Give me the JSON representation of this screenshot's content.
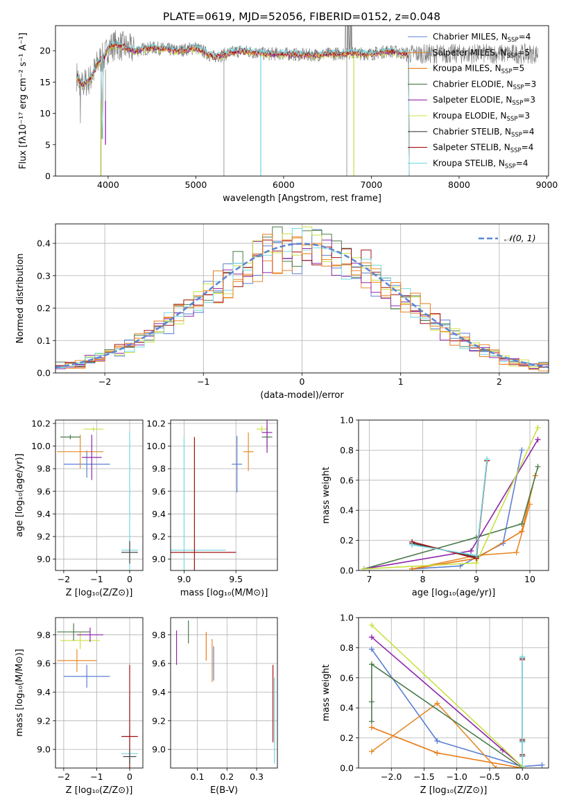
{
  "title": "PLATE=0619, MJD=52056, FIBERID=0152, z=0.048",
  "colors": {
    "Chabrier MILES": "#5b7fd4",
    "Salpeter MILES": "#e58a2a",
    "Kroupa MILES": "#e87a14",
    "Chabrier ELODIE": "#4a7a4a",
    "Salpeter ELODIE": "#8e24aa",
    "Kroupa ELODIE": "#c8e040",
    "Chabrier STELIB": "#444444",
    "Salpeter STELIB": "#a01010",
    "Kroupa STELIB": "#74d8e0",
    "data": "#808080",
    "normal": "#5b86d4"
  },
  "chart_data": [
    {
      "id": "spectrum",
      "type": "line",
      "title": "PLATE=0619, MJD=52056, FIBERID=0152, z=0.048",
      "xlabel": "wavelength [Angstrom, rest frame]",
      "ylabel": "Flux [fλ10⁻¹⁷ erg cm⁻² s⁻¹ A⁻¹]",
      "xlim": [
        3400,
        9020
      ],
      "ylim": [
        0,
        24
      ],
      "xticks": [
        4000,
        5000,
        6000,
        7000,
        8000,
        9000
      ],
      "yticks": [
        0,
        5,
        10,
        15,
        20
      ],
      "legend_position": "right",
      "legend": [
        {
          "name": "Chabrier MILES",
          "nssp": "4"
        },
        {
          "name": "Salpeter MILES",
          "nssp": "5"
        },
        {
          "name": "Kroupa MILES",
          "nssp": "5"
        },
        {
          "name": "Chabrier ELODIE",
          "nssp": "3"
        },
        {
          "name": "Salpeter ELODIE",
          "nssp": "3"
        },
        {
          "name": "Kroupa ELODIE",
          "nssp": "3"
        },
        {
          "name": "Chabrier STELIB",
          "nssp": "4"
        },
        {
          "name": "Salpeter STELIB",
          "nssp": "4"
        },
        {
          "name": "Kroupa STELIB",
          "nssp": "4"
        }
      ],
      "continuum": [
        [
          3640,
          16
        ],
        [
          3700,
          14.5
        ],
        [
          3800,
          15.5
        ],
        [
          3900,
          18.5
        ],
        [
          3960,
          19
        ],
        [
          4000,
          20.5
        ],
        [
          4100,
          21
        ],
        [
          4300,
          20
        ],
        [
          4500,
          20.5
        ],
        [
          4800,
          20
        ],
        [
          5000,
          20.5
        ],
        [
          5200,
          19
        ],
        [
          5500,
          20
        ],
        [
          5800,
          19.5
        ],
        [
          6000,
          19.5
        ],
        [
          6300,
          19.3
        ],
        [
          6700,
          19.6
        ],
        [
          7000,
          19.5
        ],
        [
          7200,
          20
        ],
        [
          7400,
          19.5
        ],
        [
          7430,
          19
        ]
      ],
      "fit_cutoff": {
        "wavelength": 7430,
        "value": 0
      },
      "drops": [
        {
          "wavelength": 3920,
          "value": 0
        },
        {
          "wavelength": 3970,
          "value": 5
        },
        {
          "wavelength": 5740,
          "value": 0
        },
        {
          "wavelength": 6800,
          "value": 0
        },
        {
          "wavelength": 5320,
          "value": 0
        },
        {
          "wavelength": 6720,
          "value": 0
        }
      ]
    },
    {
      "id": "residuals",
      "type": "line",
      "xlabel": "(data-model)/error",
      "ylabel": "Normed distribution",
      "xlim": [
        -2.5,
        2.5
      ],
      "ylim": [
        0,
        0.46
      ],
      "xticks": [
        -2,
        -1,
        0,
        1,
        2
      ],
      "yticks": [
        0,
        0.1,
        0.2,
        0.3,
        0.4
      ],
      "grid": true,
      "legend_position": "top-right",
      "legend": [
        {
          "name": "𝒩(0, 1)"
        }
      ],
      "normal": {
        "mu": 0,
        "sigma": 1
      },
      "bin_width": 0.1
    },
    {
      "id": "age-vs-Z",
      "type": "scatter",
      "xlabel": "Z [log₁₀(Z/Z⊙)]",
      "ylabel": "age  [log₁₀(age/yr)]",
      "xlim": [
        -2.25,
        0.4
      ],
      "ylim": [
        8.9,
        10.23
      ],
      "xticks": [
        -2,
        -1,
        0
      ],
      "yticks": [
        9.0,
        9.2,
        9.4,
        9.6,
        9.8,
        10.0,
        10.2
      ],
      "grid": true,
      "points": [
        {
          "series": "Chabrier MILES",
          "x": -1.3,
          "y": 9.84,
          "xerr": 0.7,
          "yerr": 0.12
        },
        {
          "series": "Salpeter MILES",
          "x": -1.5,
          "y": 9.95,
          "xerr": 0.7,
          "yerr": 0.15
        },
        {
          "series": "Kroupa ELODIE",
          "x": -1.1,
          "y": 10.15,
          "xerr": 0.3,
          "yerr": 0.02
        },
        {
          "series": "Chabrier ELODIE",
          "x": -1.8,
          "y": 10.08,
          "xerr": 0.3,
          "yerr": 0.02
        },
        {
          "series": "Salpeter ELODIE",
          "x": -1.15,
          "y": 9.9,
          "xerr": 0.3,
          "yerr": 0.2
        },
        {
          "series": "Kroupa STELIB",
          "x": 0.0,
          "y": 9.08,
          "xerr": 0.25,
          "yerr": 1.05
        },
        {
          "series": "Chabrier STELIB",
          "x": 0.0,
          "y": 9.06,
          "xerr": 0.25,
          "yerr": 0.1
        }
      ]
    },
    {
      "id": "age-vs-mass",
      "type": "scatter",
      "xlabel": "mass [log₁₀(M/M⊙)]",
      "xlim": [
        8.87,
        9.9
      ],
      "ylim": [
        8.9,
        10.23
      ],
      "xticks": [
        9.0,
        9.5
      ],
      "yticks": [
        9.0,
        9.2,
        9.4,
        9.6,
        9.8,
        10.0,
        10.2
      ],
      "grid": true,
      "points": [
        {
          "series": "Chabrier MILES",
          "x": 9.51,
          "y": 9.84,
          "xerr": 0.05,
          "yerr": 0.25
        },
        {
          "series": "Salpeter MILES",
          "x": 9.62,
          "y": 9.95,
          "xerr": 0.05,
          "yerr": 0.17
        },
        {
          "series": "Kroupa ELODIE",
          "x": 9.75,
          "y": 10.15,
          "xerr": 0.05,
          "yerr": 0.03
        },
        {
          "series": "Chabrier ELODIE",
          "x": 9.8,
          "y": 10.08,
          "xerr": 0.05,
          "yerr": 0.1
        },
        {
          "series": "Salpeter ELODIE",
          "x": 9.8,
          "y": 10.12,
          "xerr": 0.05,
          "yerr": 0.18
        },
        {
          "series": "Kroupa STELIB",
          "x": 9.0,
          "y": 9.08,
          "xerr": 0.4,
          "yerr": 1.0
        },
        {
          "series": "Salpeter STELIB",
          "x": 9.1,
          "y": 9.06,
          "xerr": 0.4,
          "yerr": 1.02
        }
      ]
    },
    {
      "id": "weight-vs-age",
      "type": "line",
      "xlabel": "age  [log₁₀(age/yr)]",
      "ylabel": "mass weight",
      "xlim": [
        6.8,
        10.35
      ],
      "ylim": [
        0,
        1.0
      ],
      "xticks": [
        7,
        8,
        9,
        10
      ],
      "yticks": [
        0.0,
        0.2,
        0.4,
        0.6,
        0.8,
        1.0
      ],
      "grid": true,
      "series": [
        {
          "name": "Chabrier MILES",
          "x": [
            7.8,
            8.7,
            9.5,
            9.85
          ],
          "y": [
            0.01,
            0.03,
            0.18,
            0.8
          ]
        },
        {
          "name": "Salpeter MILES",
          "x": [
            7.8,
            9.0,
            9.75,
            10.0
          ],
          "y": [
            0.01,
            0.1,
            0.12,
            0.44
          ]
        },
        {
          "name": "Kroupa MILES",
          "x": [
            7.8,
            9.0,
            9.85,
            10.1
          ],
          "y": [
            0.01,
            0.08,
            0.26,
            0.63
          ]
        },
        {
          "name": "Chabrier ELODIE",
          "x": [
            6.9,
            9.0,
            9.85,
            10.15
          ],
          "y": [
            0.01,
            0.22,
            0.31,
            0.69
          ]
        },
        {
          "name": "Salpeter ELODIE",
          "x": [
            6.9,
            8.9,
            10.15
          ],
          "y": [
            0.01,
            0.13,
            0.87
          ]
        },
        {
          "name": "Kroupa ELODIE",
          "x": [
            6.9,
            9.0,
            10.15
          ],
          "y": [
            0.01,
            0.05,
            0.95
          ]
        },
        {
          "name": "Chabrier STELIB",
          "x": [
            7.8,
            9.0,
            9.2
          ],
          "y": [
            0.18,
            0.09,
            0.73
          ]
        },
        {
          "name": "Salpeter STELIB",
          "x": [
            7.8,
            9.0,
            9.2
          ],
          "y": [
            0.19,
            0.08,
            0.73
          ]
        },
        {
          "name": "Kroupa STELIB",
          "x": [
            7.8,
            9.0,
            9.2
          ],
          "y": [
            0.17,
            0.1,
            0.74
          ]
        }
      ]
    },
    {
      "id": "mass-vs-Z",
      "type": "scatter",
      "xlabel": "Z [log₁₀(Z/Z⊙)]",
      "ylabel": "mass [log₁₀(M/M⊙)]",
      "xlim": [
        -2.25,
        0.4
      ],
      "ylim": [
        8.87,
        9.92
      ],
      "xticks": [
        -2,
        -1,
        0
      ],
      "yticks": [
        9.0,
        9.2,
        9.4,
        9.6,
        9.8
      ],
      "grid": true,
      "points": [
        {
          "series": "Chabrier MILES",
          "x": -1.3,
          "y": 9.51,
          "xerr": 0.7,
          "yerr": 0.08
        },
        {
          "series": "Salpeter MILES",
          "x": -1.6,
          "y": 9.62,
          "xerr": 0.6,
          "yerr": 0.08
        },
        {
          "series": "Kroupa ELODIE",
          "x": -1.5,
          "y": 9.76,
          "xerr": 0.6,
          "yerr": 0.06
        },
        {
          "series": "Chabrier ELODIE",
          "x": -1.7,
          "y": 9.82,
          "xerr": 0.5,
          "yerr": 0.06
        },
        {
          "series": "Salpeter ELODIE",
          "x": -1.2,
          "y": 9.8,
          "xerr": 0.4,
          "yerr": 0.05
        },
        {
          "series": "Kroupa STELIB",
          "x": 0.0,
          "y": 8.97,
          "xerr": 0.25,
          "yerr": 0.4
        },
        {
          "series": "Salpeter STELIB",
          "x": 0.0,
          "y": 9.09,
          "xerr": 0.25,
          "yerr": 0.5
        },
        {
          "series": "Chabrier STELIB",
          "x": 0.0,
          "y": 8.95,
          "xerr": 0.2,
          "yerr": 0.05
        }
      ]
    },
    {
      "id": "mass-vs-EBV",
      "type": "scatter",
      "xlabel": "E(B-V)",
      "xlim": [
        0.01,
        0.37
      ],
      "ylim": [
        8.87,
        9.92
      ],
      "xticks": [
        0.1,
        0.2,
        0.3
      ],
      "yticks": [
        9.0,
        9.2,
        9.4,
        9.6,
        9.8
      ],
      "grid": true,
      "points": [
        {
          "series": "Salpeter ELODIE",
          "x": 0.03,
          "y": 9.71,
          "yerr": 0.12
        },
        {
          "series": "Chabrier ELODIE",
          "x": 0.07,
          "y": 9.82,
          "yerr": 0.08
        },
        {
          "series": "Kroupa MILES",
          "x": 0.13,
          "y": 9.72,
          "yerr": 0.1
        },
        {
          "series": "Salpeter MILES",
          "x": 0.15,
          "y": 9.62,
          "yerr": 0.15
        },
        {
          "series": "Chabrier MILES",
          "x": 0.155,
          "y": 9.6,
          "yerr": 0.12
        },
        {
          "series": "Salpeter STELIB",
          "x": 0.355,
          "y": 9.32,
          "yerr": 0.27
        },
        {
          "series": "Kroupa STELIB",
          "x": 0.36,
          "y": 9.2,
          "yerr": 0.3
        }
      ]
    },
    {
      "id": "weight-vs-Z",
      "type": "line",
      "xlabel": "Z [log₁₀(Z/Z⊙)]",
      "ylabel": "mass weight",
      "xlim": [
        -2.5,
        0.4
      ],
      "ylim": [
        0,
        1.0
      ],
      "xticks": [
        -2.0,
        -1.5,
        -1.0,
        -0.5,
        0.0
      ],
      "yticks": [
        0.0,
        0.2,
        0.4,
        0.6,
        0.8,
        1.0
      ],
      "grid": true,
      "series": [
        {
          "name": "Chabrier MILES",
          "x": [
            -2.3,
            -1.3,
            0.0,
            0.3
          ],
          "y": [
            0.79,
            0.18,
            0.01,
            0.02
          ]
        },
        {
          "name": "Salpeter MILES",
          "x": [
            -2.3,
            -1.3,
            -0.4,
            0.0
          ],
          "y": [
            0.11,
            0.43,
            0.0,
            0.0
          ]
        },
        {
          "name": "Kroupa MILES",
          "x": [
            -2.3,
            -1.3,
            0.0
          ],
          "y": [
            0.27,
            0.1,
            0.0
          ]
        },
        {
          "name": "Chabrier ELODIE",
          "x": [
            -2.3,
            -2.3,
            -2.3,
            0.0
          ],
          "y": [
            0.31,
            0.44,
            0.69,
            0.0
          ]
        },
        {
          "name": "Salpeter ELODIE",
          "x": [
            -2.3,
            -0.3,
            0.0
          ],
          "y": [
            0.87,
            0.12,
            0.01
          ]
        },
        {
          "name": "Kroupa ELODIE",
          "x": [
            -2.3,
            0.0
          ],
          "y": [
            0.95,
            0.01
          ]
        },
        {
          "name": "Chabrier STELIB",
          "x": [
            0.0,
            0.0,
            0.0
          ],
          "y": [
            0.08,
            0.18,
            0.73
          ]
        },
        {
          "name": "Salpeter STELIB",
          "x": [
            0.0,
            0.0,
            0.0
          ],
          "y": [
            0.09,
            0.19,
            0.72
          ]
        },
        {
          "name": "Kroupa STELIB",
          "x": [
            0.0,
            0.0,
            0.0
          ],
          "y": [
            0.0,
            0.17,
            0.74
          ]
        }
      ]
    }
  ]
}
